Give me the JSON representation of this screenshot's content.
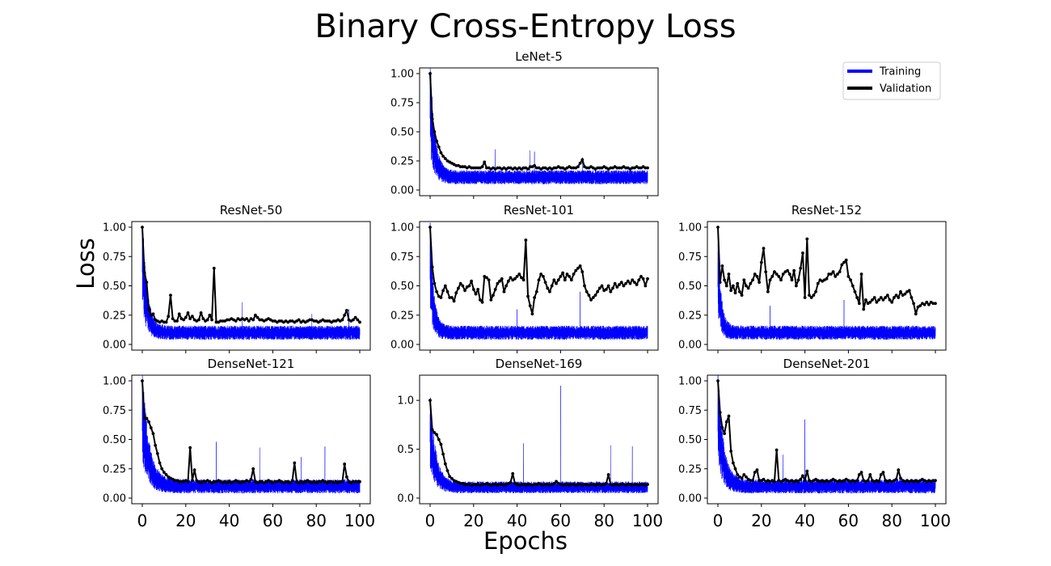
{
  "chart_data": {
    "type": "line",
    "title": "Binary Cross-Entropy Loss",
    "xlabel": "Epochs",
    "ylabel": "Loss",
    "xlim": [
      0,
      100
    ],
    "xticks": [
      "0",
      "20",
      "40",
      "60",
      "80",
      "100"
    ],
    "legend": {
      "position": "top-right",
      "entries": [
        {
          "label": "Training",
          "color": "#0000ff"
        },
        {
          "label": "Validation",
          "color": "#000000"
        }
      ]
    },
    "panels": [
      {
        "name": "lenet-5",
        "title": "LeNet-5",
        "ylim": [
          0,
          1.0
        ],
        "yticks": [
          "0.00",
          "0.25",
          "0.50",
          "0.75",
          "1.00"
        ],
        "training": {
          "start": 0.75,
          "floor": 0.11,
          "decay": 2.0,
          "noise": 0.06,
          "spikes": [
            [
              30,
              0.35
            ],
            [
              46,
              0.34
            ],
            [
              48,
              0.33
            ],
            [
              70,
              0.28
            ]
          ]
        },
        "validation": [
          1.0,
          0.61,
          0.5,
          0.42,
          0.37,
          0.32,
          0.29,
          0.27,
          0.25,
          0.24,
          0.23,
          0.22,
          0.21,
          0.21,
          0.2,
          0.2,
          0.2,
          0.19,
          0.2,
          0.19,
          0.19,
          0.19,
          0.19,
          0.19,
          0.2,
          0.24,
          0.19,
          0.19,
          0.18,
          0.19,
          0.18,
          0.19,
          0.19,
          0.18,
          0.19,
          0.18,
          0.19,
          0.19,
          0.18,
          0.19,
          0.18,
          0.19,
          0.18,
          0.19,
          0.19,
          0.18,
          0.2,
          0.2,
          0.21,
          0.19,
          0.19,
          0.18,
          0.19,
          0.19,
          0.18,
          0.19,
          0.18,
          0.19,
          0.19,
          0.2,
          0.19,
          0.19,
          0.18,
          0.19,
          0.2,
          0.19,
          0.19,
          0.19,
          0.2,
          0.23,
          0.26,
          0.2,
          0.19,
          0.19,
          0.2,
          0.19,
          0.18,
          0.19,
          0.19,
          0.19,
          0.2,
          0.19,
          0.18,
          0.19,
          0.19,
          0.2,
          0.19,
          0.19,
          0.19,
          0.2,
          0.19,
          0.19,
          0.18,
          0.19,
          0.19,
          0.2,
          0.19,
          0.19,
          0.2,
          0.19,
          0.19
        ]
      },
      {
        "name": "resnet-50",
        "title": "ResNet-50",
        "ylim": [
          0,
          1.0
        ],
        "yticks": [
          "0.00",
          "0.25",
          "0.50",
          "0.75",
          "1.00"
        ],
        "training": {
          "start": 0.75,
          "floor": 0.1,
          "decay": 2.0,
          "noise": 0.06,
          "spikes": [
            [
              46,
              0.36
            ],
            [
              78,
              0.26
            ],
            [
              95,
              0.3
            ]
          ]
        },
        "validation": [
          1.0,
          0.61,
          0.53,
          0.3,
          0.25,
          0.26,
          0.21,
          0.2,
          0.19,
          0.2,
          0.19,
          0.19,
          0.24,
          0.42,
          0.22,
          0.2,
          0.2,
          0.26,
          0.22,
          0.21,
          0.23,
          0.27,
          0.22,
          0.24,
          0.21,
          0.2,
          0.21,
          0.27,
          0.22,
          0.2,
          0.21,
          0.25,
          0.21,
          0.65,
          0.19,
          0.19,
          0.2,
          0.2,
          0.2,
          0.21,
          0.21,
          0.22,
          0.21,
          0.2,
          0.22,
          0.21,
          0.22,
          0.21,
          0.22,
          0.2,
          0.22,
          0.21,
          0.25,
          0.23,
          0.21,
          0.21,
          0.2,
          0.21,
          0.22,
          0.21,
          0.2,
          0.2,
          0.19,
          0.2,
          0.2,
          0.19,
          0.2,
          0.19,
          0.2,
          0.2,
          0.19,
          0.2,
          0.21,
          0.19,
          0.2,
          0.19,
          0.2,
          0.21,
          0.21,
          0.2,
          0.2,
          0.19,
          0.2,
          0.21,
          0.2,
          0.2,
          0.2,
          0.19,
          0.2,
          0.2,
          0.21,
          0.2,
          0.21,
          0.25,
          0.29,
          0.21,
          0.2,
          0.21,
          0.23,
          0.21,
          0.19
        ]
      },
      {
        "name": "resnet-101",
        "title": "ResNet-101",
        "ylim": [
          0,
          1.0
        ],
        "yticks": [
          "0.00",
          "0.25",
          "0.50",
          "0.75",
          "1.00"
        ],
        "training": {
          "start": 0.68,
          "floor": 0.1,
          "decay": 1.6,
          "noise": 0.06,
          "spikes": [
            [
              69,
              0.45
            ],
            [
              40,
              0.3
            ]
          ]
        },
        "validation": [
          1.0,
          0.66,
          0.52,
          0.45,
          0.41,
          0.4,
          0.46,
          0.5,
          0.45,
          0.4,
          0.4,
          0.37,
          0.44,
          0.48,
          0.52,
          0.5,
          0.46,
          0.49,
          0.5,
          0.54,
          0.47,
          0.43,
          0.47,
          0.38,
          0.36,
          0.58,
          0.57,
          0.55,
          0.38,
          0.42,
          0.47,
          0.52,
          0.54,
          0.56,
          0.45,
          0.5,
          0.54,
          0.57,
          0.55,
          0.56,
          0.58,
          0.6,
          0.57,
          0.55,
          0.89,
          0.41,
          0.33,
          0.26,
          0.4,
          0.45,
          0.55,
          0.6,
          0.58,
          0.53,
          0.48,
          0.45,
          0.5,
          0.55,
          0.52,
          0.55,
          0.58,
          0.61,
          0.55,
          0.6,
          0.58,
          0.55,
          0.6,
          0.63,
          0.65,
          0.67,
          0.62,
          0.5,
          0.45,
          0.42,
          0.38,
          0.4,
          0.42,
          0.45,
          0.48,
          0.5,
          0.46,
          0.47,
          0.5,
          0.45,
          0.48,
          0.52,
          0.49,
          0.51,
          0.53,
          0.5,
          0.52,
          0.54,
          0.52,
          0.55,
          0.53,
          0.51,
          0.55,
          0.58,
          0.56,
          0.5,
          0.56
        ]
      },
      {
        "name": "resnet-152",
        "title": "ResNet-152",
        "ylim": [
          0,
          1.0
        ],
        "yticks": [
          "0.00",
          "0.25",
          "0.50",
          "0.75",
          "1.00"
        ],
        "training": {
          "start": 0.6,
          "floor": 0.1,
          "decay": 1.5,
          "noise": 0.06,
          "spikes": [
            [
              24,
              0.33
            ],
            [
              58,
              0.38
            ]
          ]
        },
        "validation": [
          1.0,
          0.53,
          0.67,
          0.55,
          0.5,
          0.6,
          0.46,
          0.5,
          0.44,
          0.52,
          0.45,
          0.42,
          0.55,
          0.5,
          0.48,
          0.52,
          0.55,
          0.6,
          0.58,
          0.53,
          0.7,
          0.82,
          0.62,
          0.45,
          0.55,
          0.58,
          0.62,
          0.6,
          0.58,
          0.55,
          0.6,
          0.62,
          0.63,
          0.6,
          0.55,
          0.63,
          0.5,
          0.55,
          0.65,
          0.78,
          0.4,
          0.9,
          0.42,
          0.4,
          0.42,
          0.45,
          0.52,
          0.55,
          0.54,
          0.55,
          0.56,
          0.6,
          0.6,
          0.62,
          0.58,
          0.6,
          0.62,
          0.68,
          0.7,
          0.72,
          0.58,
          0.55,
          0.5,
          0.45,
          0.4,
          0.35,
          0.6,
          0.3,
          0.38,
          0.35,
          0.36,
          0.38,
          0.4,
          0.36,
          0.38,
          0.4,
          0.38,
          0.4,
          0.42,
          0.38,
          0.36,
          0.4,
          0.42,
          0.4,
          0.45,
          0.42,
          0.43,
          0.45,
          0.46,
          0.4,
          0.35,
          0.26,
          0.32,
          0.33,
          0.35,
          0.34,
          0.36,
          0.34,
          0.36,
          0.35,
          0.35
        ]
      },
      {
        "name": "densenet-121",
        "title": "DenseNet-121",
        "ylim": [
          0,
          1.0
        ],
        "yticks": [
          "0.00",
          "0.25",
          "0.50",
          "0.75",
          "1.00"
        ],
        "training": {
          "start": 0.7,
          "floor": 0.1,
          "decay": 3.0,
          "noise": 0.06,
          "spikes": [
            [
              34,
              0.48
            ],
            [
              54,
              0.43
            ],
            [
              84,
              0.44
            ],
            [
              73,
              0.35
            ]
          ]
        },
        "validation": [
          1.0,
          0.68,
          0.68,
          0.65,
          0.6,
          0.55,
          0.45,
          0.38,
          0.3,
          0.25,
          0.22,
          0.2,
          0.18,
          0.17,
          0.16,
          0.15,
          0.15,
          0.14,
          0.14,
          0.14,
          0.15,
          0.14,
          0.43,
          0.15,
          0.24,
          0.15,
          0.14,
          0.13,
          0.14,
          0.14,
          0.15,
          0.14,
          0.13,
          0.14,
          0.14,
          0.15,
          0.14,
          0.13,
          0.14,
          0.13,
          0.14,
          0.13,
          0.14,
          0.15,
          0.14,
          0.13,
          0.14,
          0.14,
          0.15,
          0.14,
          0.16,
          0.25,
          0.14,
          0.13,
          0.14,
          0.14,
          0.13,
          0.14,
          0.15,
          0.14,
          0.13,
          0.14,
          0.14,
          0.15,
          0.14,
          0.13,
          0.14,
          0.14,
          0.13,
          0.15,
          0.3,
          0.14,
          0.13,
          0.14,
          0.13,
          0.14,
          0.15,
          0.14,
          0.13,
          0.14,
          0.13,
          0.14,
          0.14,
          0.15,
          0.14,
          0.13,
          0.14,
          0.14,
          0.13,
          0.14,
          0.13,
          0.14,
          0.14,
          0.29,
          0.18,
          0.14,
          0.13,
          0.14,
          0.14,
          0.14,
          0.14
        ]
      },
      {
        "name": "densenet-169",
        "title": "DenseNet-169",
        "ylim": [
          0,
          1.2
        ],
        "yticks": [
          "0.0",
          "0.5",
          "1.0"
        ],
        "training": {
          "start": 0.7,
          "floor": 0.11,
          "decay": 2.5,
          "noise": 0.06,
          "spikes": [
            [
              43,
              0.56
            ],
            [
              60,
              1.15
            ],
            [
              83,
              0.54
            ],
            [
              93,
              0.53
            ]
          ]
        },
        "validation": [
          1.0,
          0.7,
          0.67,
          0.65,
          0.6,
          0.55,
          0.45,
          0.35,
          0.28,
          0.22,
          0.2,
          0.18,
          0.17,
          0.16,
          0.15,
          0.15,
          0.14,
          0.14,
          0.14,
          0.13,
          0.14,
          0.14,
          0.14,
          0.13,
          0.14,
          0.14,
          0.15,
          0.14,
          0.13,
          0.14,
          0.14,
          0.13,
          0.14,
          0.14,
          0.13,
          0.14,
          0.15,
          0.16,
          0.25,
          0.15,
          0.14,
          0.13,
          0.14,
          0.14,
          0.13,
          0.14,
          0.14,
          0.13,
          0.14,
          0.14,
          0.15,
          0.14,
          0.13,
          0.14,
          0.14,
          0.13,
          0.14,
          0.15,
          0.17,
          0.15,
          0.14,
          0.13,
          0.14,
          0.14,
          0.13,
          0.14,
          0.14,
          0.13,
          0.14,
          0.14,
          0.13,
          0.14,
          0.14,
          0.13,
          0.14,
          0.14,
          0.13,
          0.14,
          0.14,
          0.13,
          0.14,
          0.15,
          0.24,
          0.14,
          0.13,
          0.14,
          0.14,
          0.13,
          0.14,
          0.14,
          0.13,
          0.14,
          0.14,
          0.13,
          0.14,
          0.14,
          0.13,
          0.14,
          0.14,
          0.13,
          0.14
        ]
      },
      {
        "name": "densenet-201",
        "title": "DenseNet-201",
        "ylim": [
          0,
          1.0
        ],
        "yticks": [
          "0.00",
          "0.25",
          "0.50",
          "0.75",
          "1.00"
        ],
        "training": {
          "start": 0.7,
          "floor": 0.1,
          "decay": 2.5,
          "noise": 0.06,
          "spikes": [
            [
              40,
              0.67
            ],
            [
              30,
              0.37
            ]
          ]
        },
        "validation": [
          1.0,
          0.73,
          0.6,
          0.55,
          0.65,
          0.7,
          0.4,
          0.3,
          0.25,
          0.2,
          0.18,
          0.17,
          0.2,
          0.18,
          0.16,
          0.15,
          0.15,
          0.22,
          0.24,
          0.15,
          0.15,
          0.16,
          0.14,
          0.15,
          0.14,
          0.15,
          0.14,
          0.41,
          0.15,
          0.14,
          0.15,
          0.16,
          0.15,
          0.14,
          0.15,
          0.14,
          0.15,
          0.14,
          0.16,
          0.19,
          0.15,
          0.23,
          0.15,
          0.14,
          0.15,
          0.16,
          0.15,
          0.14,
          0.15,
          0.14,
          0.15,
          0.14,
          0.15,
          0.16,
          0.15,
          0.14,
          0.15,
          0.14,
          0.15,
          0.16,
          0.15,
          0.14,
          0.15,
          0.14,
          0.15,
          0.2,
          0.22,
          0.15,
          0.14,
          0.15,
          0.2,
          0.15,
          0.14,
          0.15,
          0.14,
          0.2,
          0.22,
          0.15,
          0.14,
          0.15,
          0.14,
          0.15,
          0.16,
          0.24,
          0.17,
          0.15,
          0.14,
          0.15,
          0.14,
          0.15,
          0.14,
          0.15,
          0.14,
          0.15,
          0.16,
          0.15,
          0.14,
          0.15,
          0.14,
          0.15,
          0.15
        ]
      }
    ]
  }
}
